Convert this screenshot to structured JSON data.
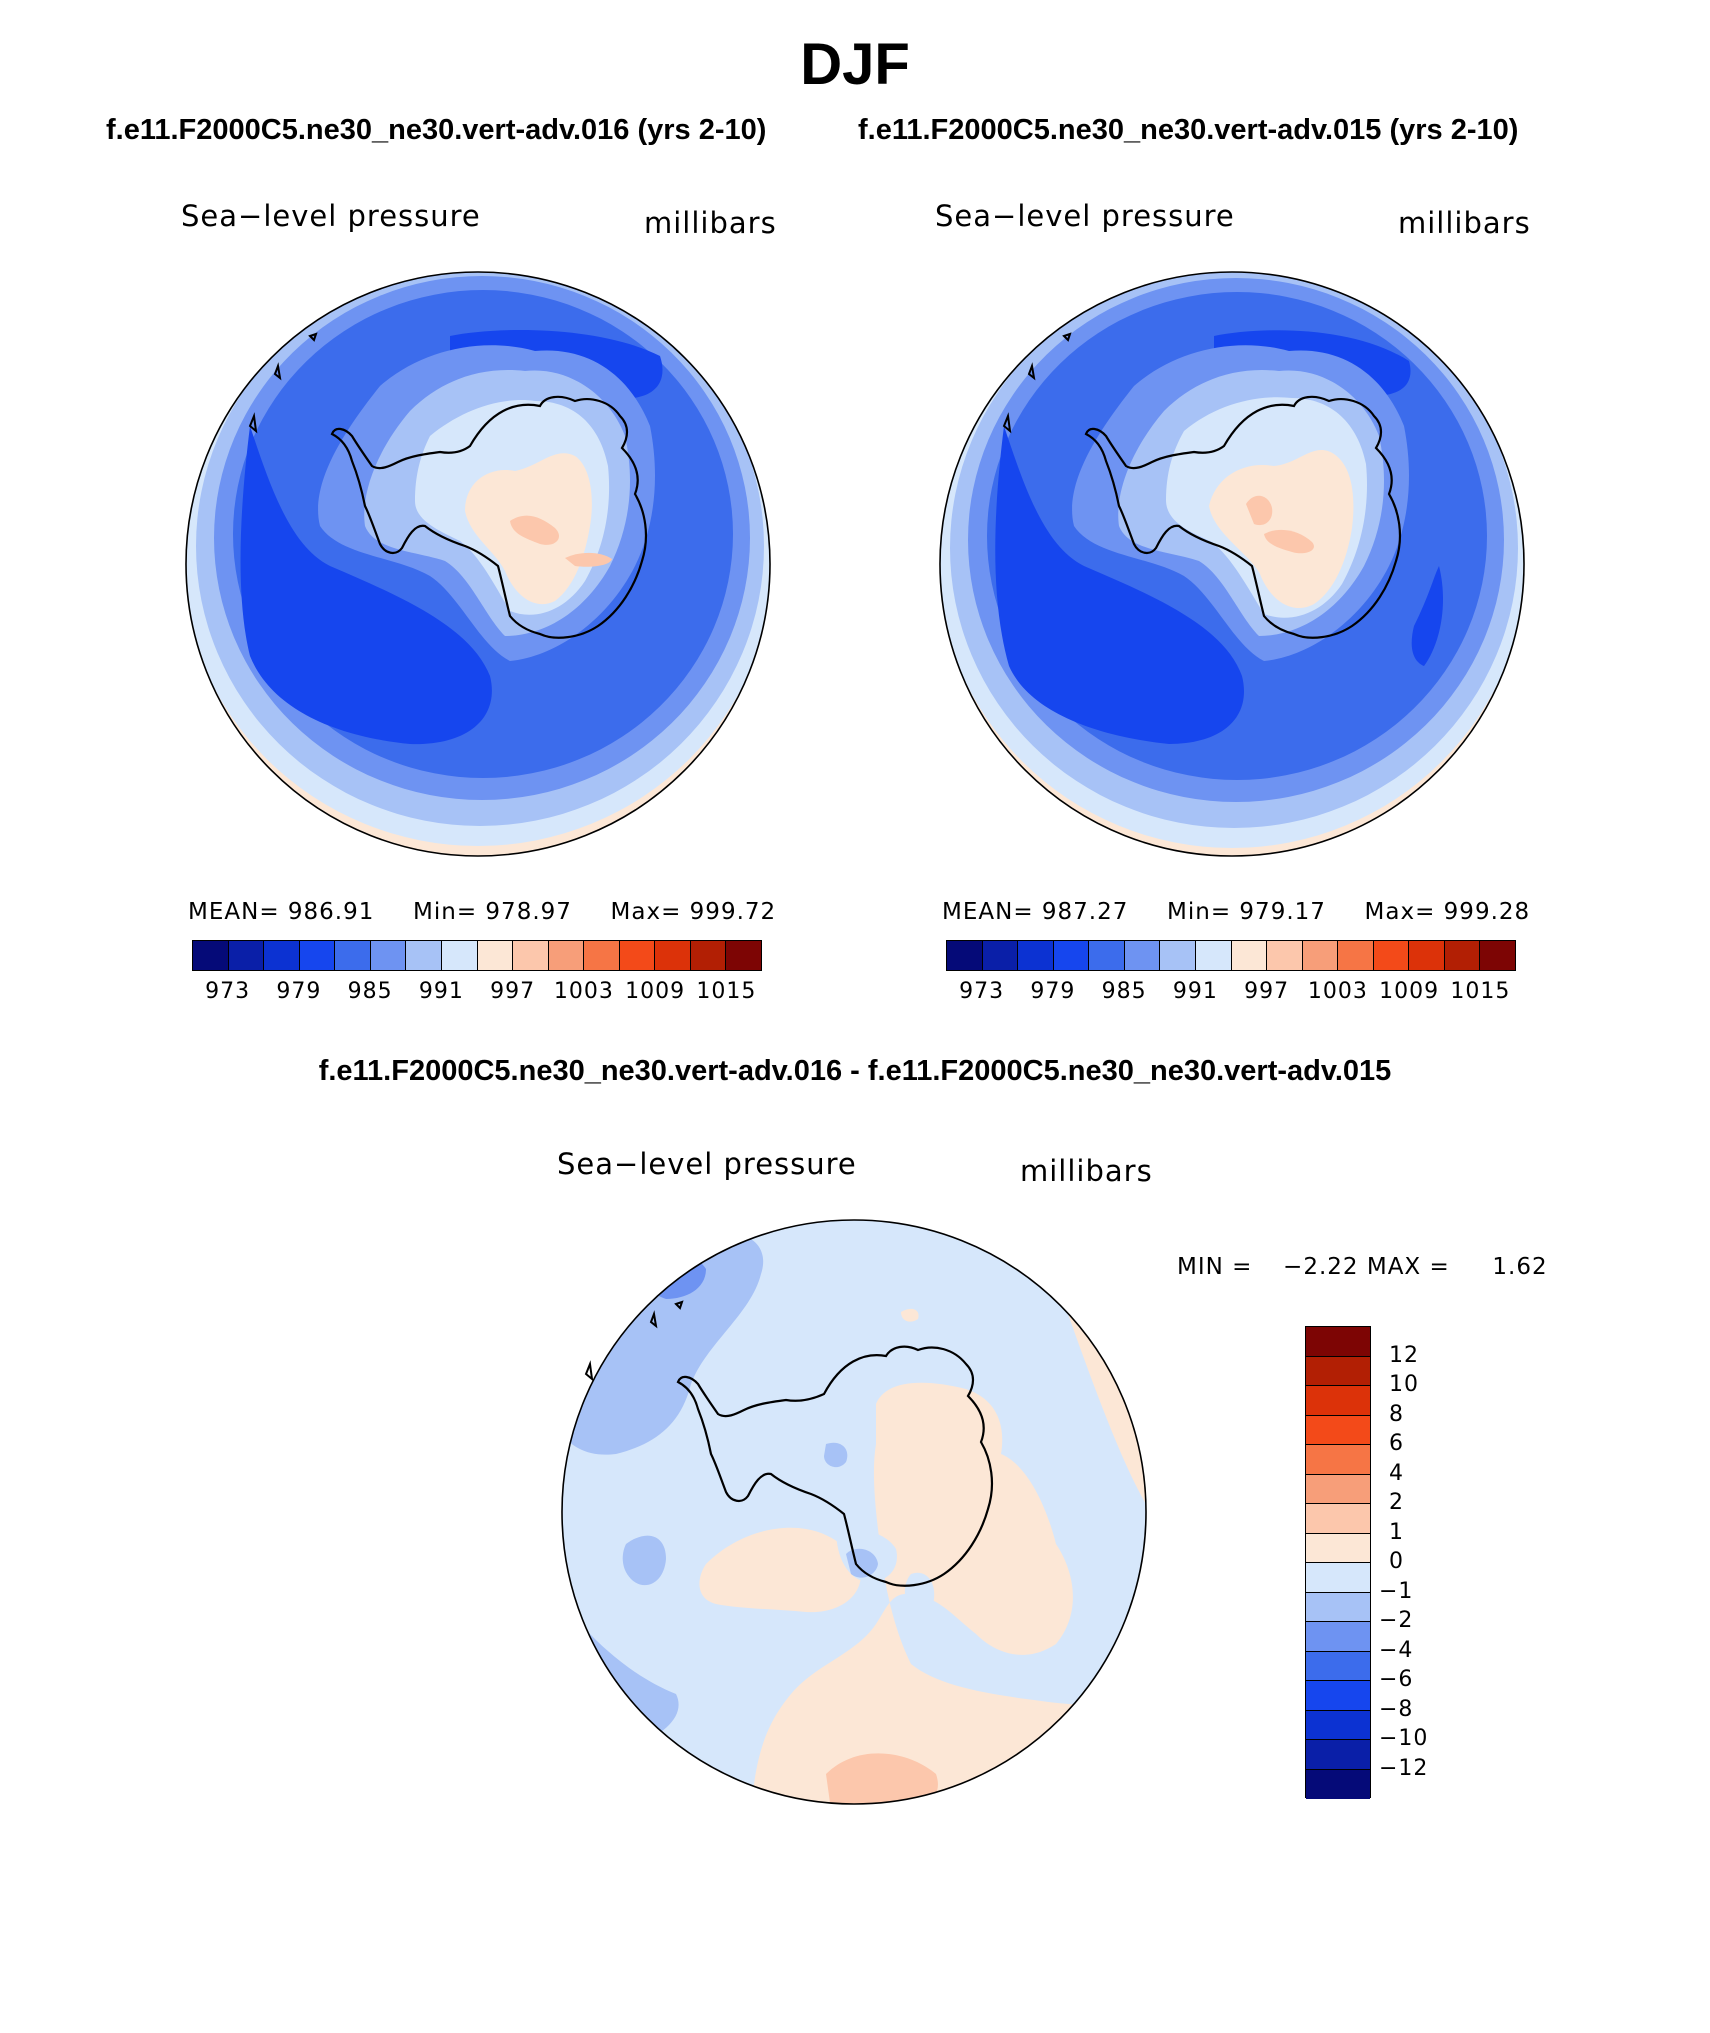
{
  "season": "DJF",
  "case_test": "f.e11.F2000C5.ne30_ne30.vert-adv.016 (yrs 2-10)",
  "case_ctrl": "f.e11.F2000C5.ne30_ne30.vert-adv.015 (yrs 2-10)",
  "diff_title": "f.e11.F2000C5.ne30_ne30.vert-adv.016 - f.e11.F2000C5.ne30_ne30.vert-adv.015",
  "panels": [
    {
      "variable": "Sea−level pressure",
      "units": "millibars",
      "mean_label": "MEAN=",
      "mean": "986.91",
      "min_label": "Min=",
      "min": "978.97",
      "max_label": "Max=",
      "max": "999.72"
    },
    {
      "variable": "Sea−level pressure",
      "units": "millibars",
      "mean_label": "MEAN=",
      "mean": "987.27",
      "min_label": "Min=",
      "min": "979.17",
      "max_label": "Max=",
      "max": "999.28"
    }
  ],
  "diff_panel": {
    "variable": "Sea−level pressure",
    "units": "millibars",
    "min_label": "MIN =",
    "min": "−2.22",
    "max_label": "MAX =",
    "max": "1.62"
  },
  "colorbar_main": {
    "ticks": [
      "973",
      "979",
      "985",
      "991",
      "997",
      "1003",
      "1009",
      "1015"
    ],
    "colors": [
      "#050A78",
      "#0A1FA8",
      "#0C32D2",
      "#1646EE",
      "#3C6CEC",
      "#6E93F2",
      "#A7C2F6",
      "#D6E7FB",
      "#FCE7D6",
      "#FCC7AC",
      "#F79E79",
      "#F67545",
      "#F34A19",
      "#DC3209",
      "#B21F04",
      "#7D0504"
    ]
  },
  "colorbar_diff": {
    "ticks_top_to_bottom": [
      "12",
      "10",
      "8",
      "6",
      "4",
      "2",
      "1",
      "0",
      "−1",
      "−2",
      "−4",
      "−6",
      "−8",
      "−10",
      "−12"
    ],
    "colors_top_to_bottom": [
      "#7D0504",
      "#B21F04",
      "#DC3209",
      "#F34A19",
      "#F67545",
      "#F79E79",
      "#FCC7AC",
      "#FCE7D6",
      "#D6E7FB",
      "#A7C2F6",
      "#6E93F2",
      "#3C6CEC",
      "#1646EE",
      "#0C32D2",
      "#0A1FA8",
      "#050A78"
    ]
  }
}
